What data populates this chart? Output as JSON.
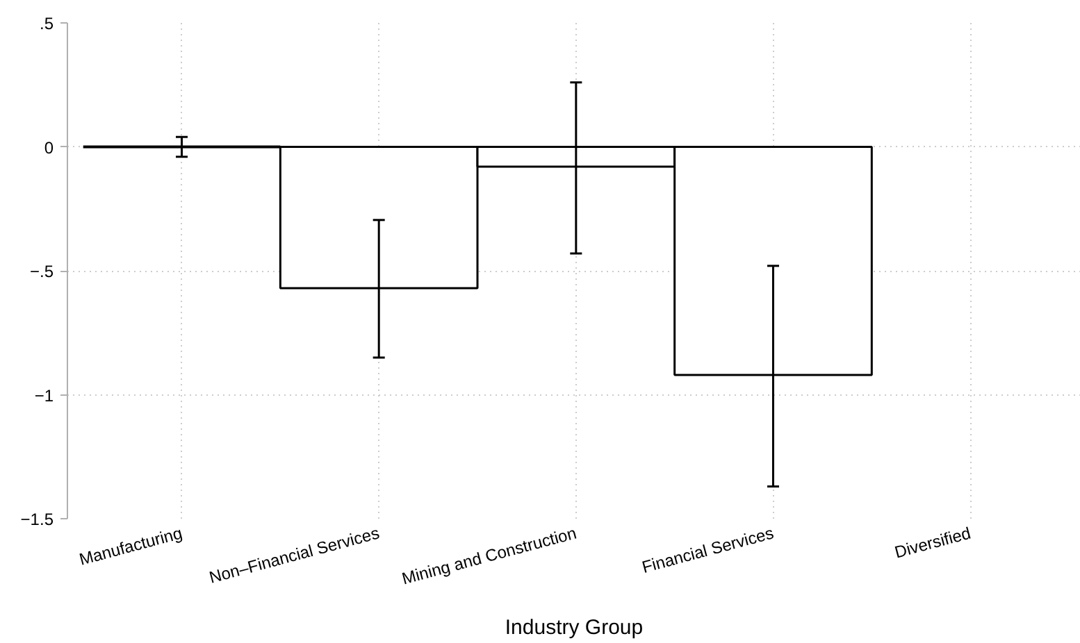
{
  "chart_data": {
    "type": "bar",
    "xlabel": "Industry Group",
    "categories": [
      "Manufacturing",
      "Non–Financial Services",
      "Mining and Construction",
      "Financial Services",
      "Diversified"
    ],
    "series": [
      {
        "colors": [
          "#000000",
          "#ffffff",
          "#ffffff",
          "#ffffff",
          "#ffffff"
        ],
        "values": [
          0.0,
          -0.57,
          -0.08,
          -0.92,
          null
        ],
        "errors": [
          [
            -0.04,
            0.04
          ],
          [
            -0.85,
            -0.295
          ],
          [
            -0.43,
            0.26
          ],
          [
            -1.37,
            -0.48
          ],
          null
        ]
      }
    ],
    "ylim": [
      -1.5,
      0.5
    ],
    "yticks": [
      {
        "value": 0.5,
        "label": ".5"
      },
      0,
      {
        "value": -0.5,
        "label": "−.5"
      },
      {
        "value": -1,
        "label": "−1"
      },
      {
        "value": -1.5,
        "label": "−1.5"
      }
    ],
    "grid": true
  }
}
